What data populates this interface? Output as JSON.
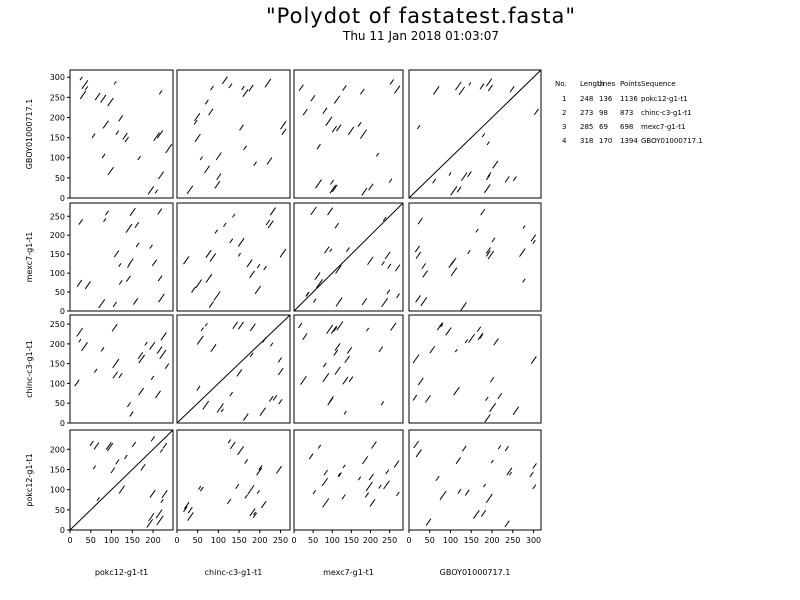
{
  "chart_data": {
    "type": "dotplot-matrix",
    "title": "\"Polydot of fastatest.fasta\"",
    "subtitle": "Thu 11 Jan 2018 01:03:07",
    "sequences": [
      {
        "number": "1",
        "name": "pokc12-g1-t1",
        "length": 248,
        "lines": 136,
        "points": 1136
      },
      {
        "number": "2",
        "name": "chinc-c3-g1-t1",
        "length": 273,
        "lines": 98,
        "points": 873
      },
      {
        "number": "3",
        "name": "mexc7-g1-t1",
        "length": 285,
        "lines": 69,
        "points": 698
      },
      {
        "number": "4",
        "name": "GBOY01000717.1",
        "length": 318,
        "lines": 170,
        "points": 1394
      }
    ],
    "legend": {
      "headers": [
        "No.",
        "Length",
        "Lines",
        "Points",
        "Sequence"
      ]
    },
    "column_order": [
      1,
      2,
      3,
      4
    ],
    "row_order_top_to_bottom": [
      4,
      3,
      2,
      1
    ],
    "x_tick_labels": {
      "1": [
        "0",
        "50",
        "100",
        "150",
        "200"
      ],
      "2": [
        "0",
        "50",
        "100",
        "150",
        "200",
        "250"
      ],
      "3": [
        "0",
        "50",
        "100",
        "150",
        "200",
        "250"
      ],
      "4": [
        "0",
        "50",
        "100",
        "150",
        "200",
        "250",
        "300"
      ]
    },
    "y_tick_labels": {
      "1": [
        "0",
        "50",
        "100",
        "150",
        "200"
      ],
      "2": [
        "0",
        "50",
        "100",
        "150",
        "200",
        "250"
      ],
      "3": [
        "0",
        "50",
        "100",
        "150",
        "200",
        "250"
      ],
      "4": [
        "0",
        "50",
        "100",
        "150",
        "200",
        "250",
        "300"
      ]
    },
    "diagonal_self_alignment": true
  }
}
